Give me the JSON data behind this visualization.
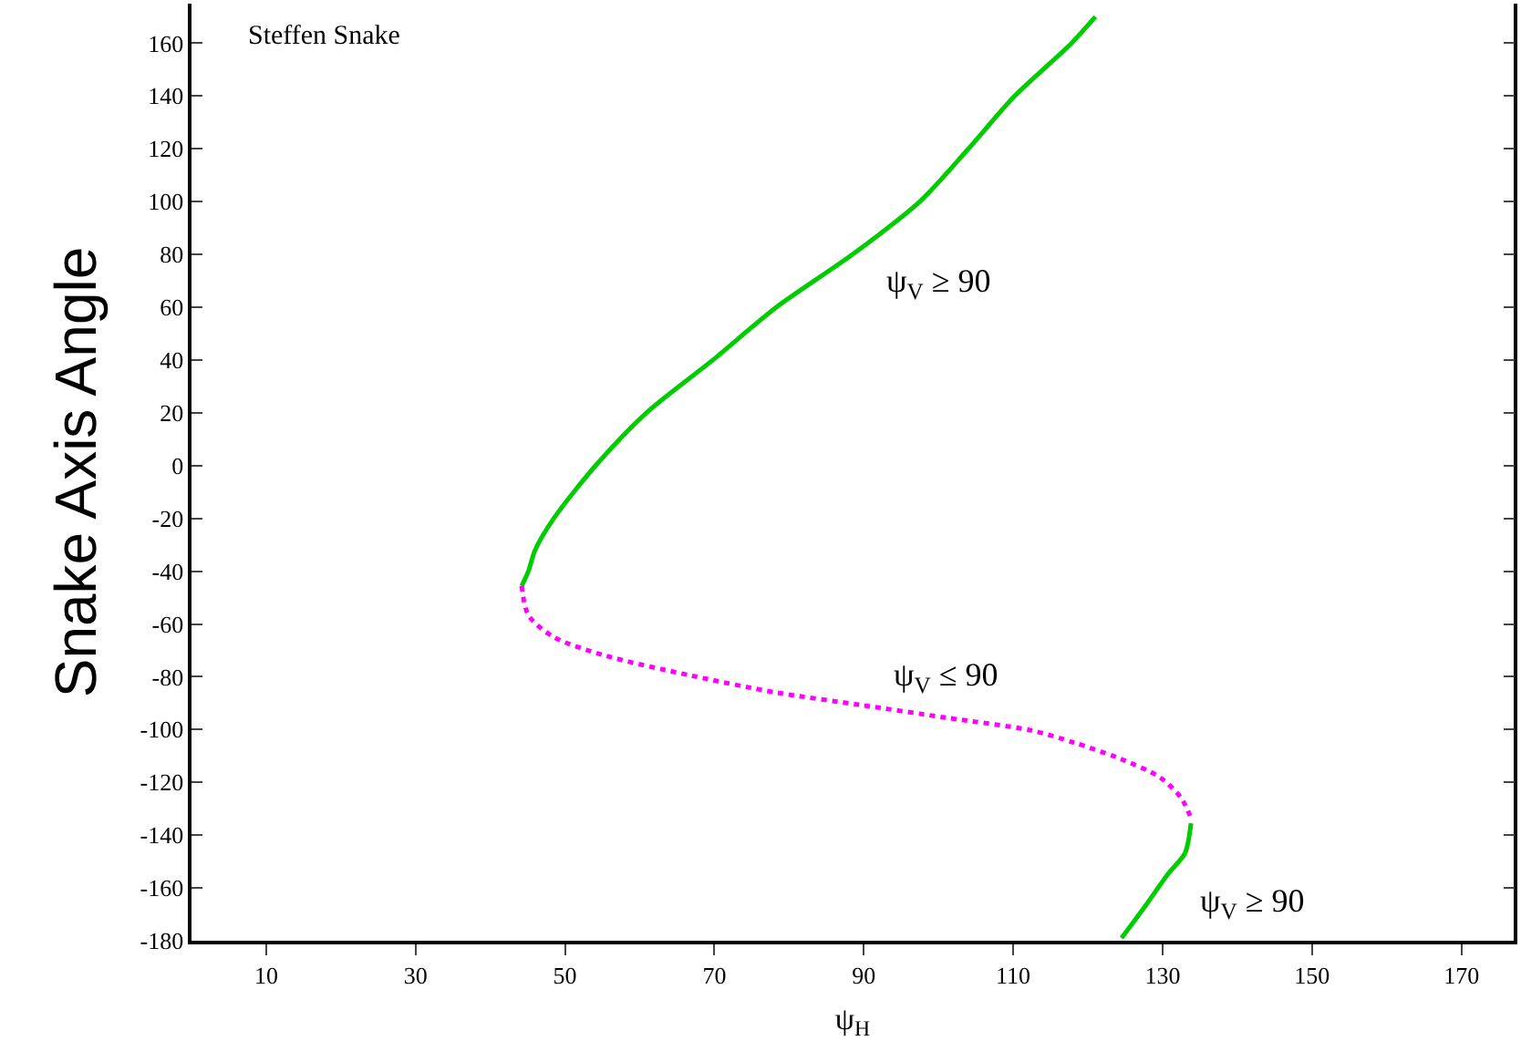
{
  "chart_data": {
    "type": "line",
    "xlabel": "ψ$_{H}$",
    "ylabel": "Snake Axis Angle",
    "xlim": [
      0,
      177
    ],
    "xticks": [
      10,
      30,
      50,
      70,
      90,
      110,
      130,
      150,
      170
    ],
    "ylim": [
      -180,
      175
    ],
    "yticks": [
      -180,
      -160,
      -140,
      -120,
      -100,
      -80,
      -60,
      -40,
      -20,
      0,
      20,
      40,
      60,
      80,
      100,
      120,
      140,
      160
    ],
    "marker": "none",
    "series": [
      {
        "color": "#00cc00",
        "line_style": "solid",
        "x": [
          44.2,
          45.1,
          46,
          48.5,
          54.1,
          60.9,
          69.8,
          78.3,
          88.5,
          97.5,
          104,
          110.2,
          117.8,
          121
        ],
        "values": [
          -45.6,
          -40,
          -32,
          -20,
          0,
          20,
          40,
          60,
          80,
          100,
          120,
          140,
          160,
          170
        ]
      },
      {
        "color": "#ff00ff",
        "line_style": "dotted",
        "x": [
          44.2,
          45.1,
          48.5,
          55.4,
          66.8,
          78.3,
          89.6,
          101,
          112.4,
          118.2,
          123.9,
          129.6,
          132.5,
          133.8
        ],
        "values": [
          -45.6,
          -56.7,
          -65,
          -72,
          -79.5,
          -86,
          -90.7,
          -95.5,
          -100.3,
          -105,
          -110.6,
          -118,
          -126,
          -133.5
        ]
      },
      {
        "color": "#00cc00",
        "line_style": "solid",
        "x": [
          133.8,
          133,
          130.7,
          127.9,
          124.5
        ],
        "values": [
          -135.5,
          -146.8,
          -154.8,
          -166,
          -179
        ]
      }
    ],
    "annotations": [
      "Steffen Snake",
      {
        "text": "ψ$_{V}$ ≥ 90",
        "x": 88.5,
        "y": 80
      },
      {
        "text": "ψ$_{V}$ ≤ 90",
        "x": 89.6,
        "y": -90.7
      },
      {
        "text": "ψ$_{V}$ ≥ 90",
        "x": 130.7,
        "y": -154.8
      }
    ]
  }
}
